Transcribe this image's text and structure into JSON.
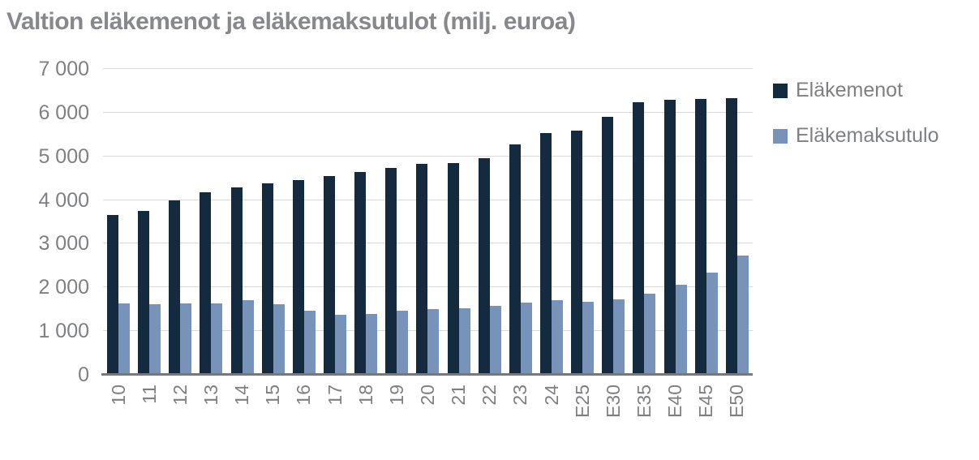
{
  "page": {
    "background": "#ffffff"
  },
  "chart_data": {
    "type": "bar",
    "title": "Valtion eläkemenot ja eläkemaksutulot (milj. euroa)",
    "categories": [
      "10",
      "11",
      "12",
      "13",
      "14",
      "15",
      "16",
      "17",
      "18",
      "19",
      "20",
      "21",
      "22",
      "23",
      "24",
      "E25",
      "E30",
      "E35",
      "E40",
      "E45",
      "E50"
    ],
    "series": [
      {
        "name": "Eläkemenot",
        "color": "#142a3e",
        "values": [
          3660,
          3750,
          3990,
          4170,
          4290,
          4390,
          4460,
          4550,
          4640,
          4740,
          4820,
          4840,
          4950,
          5280,
          5530,
          5590,
          5900,
          6230,
          6300,
          6320,
          6340
        ]
      },
      {
        "name": "Eläkemaksutulo",
        "color": "#7793ba",
        "values": [
          1630,
          1610,
          1640,
          1630,
          1700,
          1610,
          1460,
          1370,
          1390,
          1460,
          1500,
          1520,
          1580,
          1660,
          1710,
          1670,
          1720,
          1850,
          2060,
          2340,
          2730
        ]
      }
    ],
    "xlabel": "",
    "ylabel": "",
    "ylim": [
      0,
      7000
    ],
    "y_tick_interval": 1000,
    "y_ticks": [
      {
        "value": 0,
        "label": "0"
      },
      {
        "value": 1000,
        "label": "1 000"
      },
      {
        "value": 2000,
        "label": "2 000"
      },
      {
        "value": 3000,
        "label": "3 000"
      },
      {
        "value": 4000,
        "label": "4 000"
      },
      {
        "value": 5000,
        "label": "5 000"
      },
      {
        "value": 6000,
        "label": "6 000"
      },
      {
        "value": 7000,
        "label": "7 000"
      }
    ],
    "grid": "horizontal",
    "legend_position": "top-right",
    "styles": {
      "grid_color": "#d9d9d9",
      "axis_color": "#77787b",
      "tick_text_color": "#7f8083",
      "title_color": "#87888b"
    }
  }
}
